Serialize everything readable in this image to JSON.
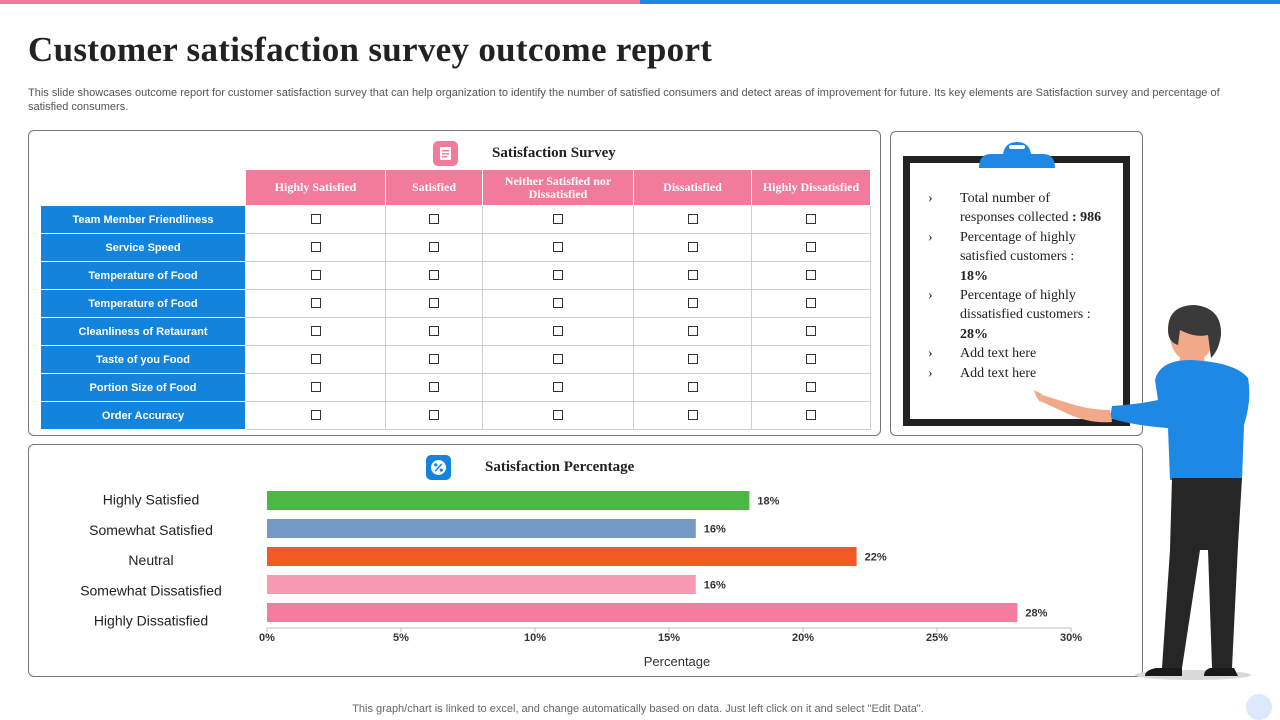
{
  "header": {
    "title": "Customer satisfaction survey outcome report",
    "subtitle": "This slide showcases outcome report for customer satisfaction survey that can help organization to identify the number of satisfied consumers and detect areas of improvement for future. Its key elements are Satisfaction survey and percentage of satisfied consumers."
  },
  "survey": {
    "title": "Satisfaction Survey",
    "columns": [
      "Highly Satisfied",
      "Satisfied",
      "Neither Satisfied nor Dissatisfied",
      "Dissatisfied",
      "Highly Dissatisfied"
    ],
    "rows": [
      "Team Member Friendliness",
      "Service Speed",
      "Temperature of Food",
      "Temperature of Food",
      "Cleanliness of Retaurant",
      "Taste of you Food",
      "Portion Size of Food",
      "Order Accuracy"
    ],
    "icon": "survey-icon",
    "icon_color": "#f27a9b"
  },
  "clipboard": {
    "bullet": "›",
    "items": [
      {
        "text": "Total number of responses collected",
        "value": ": 986"
      },
      {
        "text": "Percentage of highly satisfied customers :",
        "value": "18%"
      },
      {
        "text": "Percentage of highly dissatisfied customers :",
        "value": "28%"
      },
      {
        "text": "Add text here",
        "value": ""
      },
      {
        "text": "Add text here",
        "value": ""
      }
    ]
  },
  "chart_data": {
    "type": "bar",
    "orientation": "horizontal",
    "title": "Satisfaction Percentage",
    "categories": [
      "Highly Satisfied",
      "Somewhat Satisfied",
      "Neutral",
      "Somewhat Dissatisfied",
      "Highly Dissatisfied"
    ],
    "values": [
      18,
      16,
      22,
      16,
      28
    ],
    "data_labels": [
      "18%",
      "16%",
      "22%",
      "16%",
      "28%"
    ],
    "colors": [
      "#4cb843",
      "#7698c4",
      "#f15a22",
      "#f899b4",
      "#f47c9e"
    ],
    "xlabel": "Percentage",
    "ylabel": "",
    "xlim": [
      0,
      30
    ],
    "xticks": [
      0,
      5,
      10,
      15,
      20,
      25,
      30
    ],
    "xtick_labels": [
      "0%",
      "5%",
      "10%",
      "15%",
      "20%",
      "25%",
      "30%"
    ],
    "grid": false,
    "icon": "percent-icon",
    "icon_color": "#1483dc"
  },
  "footer": {
    "text": "This graph/chart is linked to excel, and change automatically based on data. Just left click on it and select \"Edit Data\"."
  }
}
